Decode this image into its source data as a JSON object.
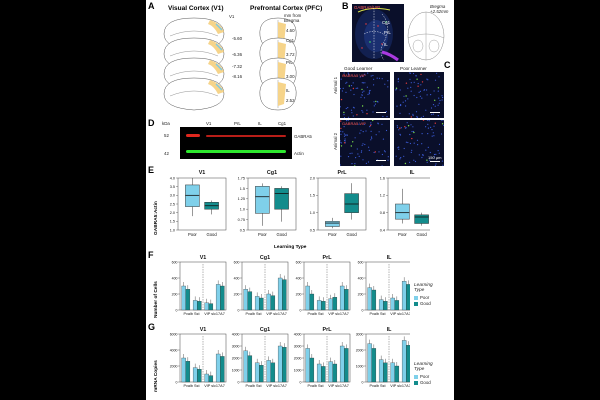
{
  "panel_labels": {
    "A": "A",
    "B": "B",
    "C": "C",
    "D": "D",
    "E": "E",
    "F": "F",
    "G": "G"
  },
  "panelA": {
    "title_v1": "Visual Cortex (V1)",
    "title_pfc": "Prefrontal Cortex (PFC)",
    "label_v1": "V1",
    "dist_note": "mm from\nBregma",
    "v1_dists": [
      "-5.60",
      "-6.36",
      "-7.32",
      "-8.16"
    ],
    "pfc_dists": [
      "4.60",
      "3.72",
      "3.00",
      "2.52"
    ],
    "pfc_regions": [
      "Cg1",
      "PrL",
      "IL"
    ],
    "colors": {
      "v1_shade": "#f6d48a",
      "pfc_shade": "#f6d48a",
      "v1_box": "#7ec8e3"
    }
  },
  "panelB": {
    "overlay_text": "GABRA5/VIP",
    "bregma": "Bregma\n+2.52mm",
    "labels": [
      "Cg1",
      "PrL",
      "IL"
    ]
  },
  "panelC": {
    "col_good": "Good Learner",
    "col_poor": "Poor Learner",
    "row1": "Animal 1",
    "row2": "Animal 2",
    "legend": "GABRA5 VIP",
    "scalebar": "150 µm"
  },
  "panelD": {
    "unit": "kDa",
    "lanes": [
      "V1",
      "PrL",
      "IL",
      "Cg1"
    ],
    "mw": [
      "52",
      "42"
    ],
    "bands": [
      "GABRA5",
      "Actin"
    ],
    "colors": {
      "red": "#e0281e",
      "green": "#2ee82e"
    }
  },
  "panelE": {
    "ylabel": "GABRA5:Actin",
    "xlabel": "Learning Type",
    "colors": {
      "poor": "#7fd0ea",
      "good": "#138c8c"
    },
    "chart_data": [
      {
        "type": "box",
        "title": "V1",
        "categories": [
          "Poor",
          "Good"
        ],
        "yticks": [
          "1.0",
          "1.5",
          "2.0",
          "2.5",
          "3.0",
          "3.5",
          "4.0"
        ],
        "ylim": [
          1.0,
          4.0
        ],
        "boxes": [
          {
            "min": 1.8,
            "q1": 2.35,
            "median": 3.0,
            "q3": 3.6,
            "max": 4.0
          },
          {
            "min": 1.9,
            "q1": 2.2,
            "median": 2.4,
            "q3": 2.6,
            "max": 2.7
          }
        ]
      },
      {
        "type": "box",
        "title": "Cg1",
        "categories": [
          "Poor",
          "Good"
        ],
        "yticks": [
          "0.5",
          "0.75",
          "1.0",
          "1.25",
          "1.5",
          "1.75"
        ],
        "ylim": [
          0.5,
          1.75
        ],
        "boxes": [
          {
            "min": 0.6,
            "q1": 0.9,
            "median": 1.3,
            "q3": 1.55,
            "max": 1.62
          },
          {
            "min": 0.7,
            "q1": 1.0,
            "median": 1.38,
            "q3": 1.5,
            "max": 1.55
          }
        ]
      },
      {
        "type": "box",
        "title": "PrL",
        "categories": [
          "Poor",
          "Good"
        ],
        "yticks": [
          "0.5",
          "1.0",
          "1.5",
          "2.0"
        ],
        "ylim": [
          0.5,
          2.0
        ],
        "boxes": [
          {
            "min": 0.55,
            "q1": 0.6,
            "median": 0.7,
            "q3": 0.75,
            "max": 0.85
          },
          {
            "min": 0.8,
            "q1": 1.0,
            "median": 1.25,
            "q3": 1.55,
            "max": 1.85
          }
        ]
      },
      {
        "type": "box",
        "title": "IL",
        "categories": [
          "Poor",
          "Good"
        ],
        "yticks": [
          "0.4",
          "0.8",
          "1.2",
          "1.6"
        ],
        "ylim": [
          0.4,
          1.6
        ],
        "boxes": [
          {
            "min": 0.55,
            "q1": 0.65,
            "median": 0.8,
            "q3": 1.0,
            "max": 1.35
          },
          {
            "min": 0.5,
            "q1": 0.55,
            "median": 0.7,
            "q3": 0.75,
            "max": 0.8
          }
        ]
      }
    ]
  },
  "panelF": {
    "ylabel": "Number of Cells",
    "legend_title": "Learning\nType",
    "legend": [
      "Poor",
      "Good"
    ],
    "colors": {
      "poor": "#7fd0ea",
      "good": "#138c8c"
    },
    "chart_data": [
      {
        "type": "bar",
        "title": "V1",
        "categories": [
          "Pvalb",
          "Sst",
          "VIP",
          "slc17A7"
        ],
        "yticks": [
          "0",
          "200",
          "400",
          "600"
        ],
        "ylim": [
          0,
          600
        ],
        "series": [
          {
            "name": "Poor",
            "values": [
              300,
              120,
              90,
              320
            ]
          },
          {
            "name": "Good",
            "values": [
              260,
              110,
              80,
              300
            ]
          }
        ]
      },
      {
        "type": "bar",
        "title": "Cg1",
        "categories": [
          "Pvalb",
          "Sst",
          "VIP",
          "slc17A7"
        ],
        "yticks": [
          "0",
          "200",
          "400",
          "600"
        ],
        "ylim": [
          0,
          600
        ],
        "series": [
          {
            "name": "Poor",
            "values": [
              260,
              170,
              200,
              400
            ]
          },
          {
            "name": "Good",
            "values": [
              230,
              150,
              180,
              380
            ]
          }
        ]
      },
      {
        "type": "bar",
        "title": "PrL",
        "categories": [
          "Pvalb",
          "Sst",
          "VIP",
          "slc17A7"
        ],
        "yticks": [
          "0",
          "200",
          "400",
          "600"
        ],
        "ylim": [
          0,
          600
        ],
        "series": [
          {
            "name": "Poor",
            "values": [
              300,
              120,
              140,
              300
            ]
          },
          {
            "name": "Good",
            "values": [
              200,
              110,
              160,
              260
            ]
          }
        ]
      },
      {
        "type": "bar",
        "title": "IL",
        "categories": [
          "Pvalb",
          "Sst",
          "VIP",
          "slc17A7"
        ],
        "yticks": [
          "0",
          "200",
          "400",
          "600"
        ],
        "ylim": [
          0,
          600
        ],
        "series": [
          {
            "name": "Poor",
            "values": [
              280,
              130,
              150,
              360
            ]
          },
          {
            "name": "Good",
            "values": [
              250,
              110,
              120,
              320
            ]
          }
        ]
      }
    ]
  },
  "panelG": {
    "ylabel": "mRNA Copies",
    "legend_title": "Learning\nType",
    "legend": [
      "Poor",
      "Good"
    ],
    "colors": {
      "poor": "#7fd0ea",
      "good": "#138c8c"
    },
    "chart_data": [
      {
        "type": "bar",
        "title": "V1",
        "categories": [
          "Pvalb",
          "Sst",
          "VIP",
          "slc17A7"
        ],
        "yticks": [
          "0",
          "2000",
          "4000",
          "6000"
        ],
        "ylim": [
          0,
          6000
        ],
        "series": [
          {
            "name": "Poor",
            "values": [
              3000,
              1800,
              1000,
              3500
            ]
          },
          {
            "name": "Good",
            "values": [
              2600,
              1600,
              800,
              3200
            ]
          }
        ]
      },
      {
        "type": "bar",
        "title": "Cg1",
        "categories": [
          "Pvalb",
          "Sst",
          "VIP",
          "slc17A7"
        ],
        "yticks": [
          "0",
          "1000",
          "2000",
          "3000",
          "4000"
        ],
        "ylim": [
          0,
          4000
        ],
        "series": [
          {
            "name": "Poor",
            "values": [
              2600,
              1600,
              1800,
              3000
            ]
          },
          {
            "name": "Good",
            "values": [
              2200,
              1400,
              1600,
              2900
            ]
          }
        ]
      },
      {
        "type": "bar",
        "title": "PrL",
        "categories": [
          "Pvalb",
          "Sst",
          "VIP",
          "slc17A7"
        ],
        "yticks": [
          "0",
          "1000",
          "2000",
          "3000",
          "4000"
        ],
        "ylim": [
          0,
          4000
        ],
        "series": [
          {
            "name": "Poor",
            "values": [
              2800,
              1500,
              1700,
              3000
            ]
          },
          {
            "name": "Good",
            "values": [
              2000,
              1300,
              1500,
              2800
            ]
          }
        ]
      },
      {
        "type": "bar",
        "title": "IL",
        "categories": [
          "Pvalb",
          "Sst",
          "VIP",
          "slc17A7"
        ],
        "yticks": [
          "0",
          "1000",
          "2000",
          "3000"
        ],
        "ylim": [
          0,
          3000
        ],
        "series": [
          {
            "name": "Poor",
            "values": [
              2400,
              1400,
              1200,
              2600
            ]
          },
          {
            "name": "Good",
            "values": [
              2100,
              1200,
              1000,
              2300
            ]
          }
        ]
      }
    ]
  }
}
